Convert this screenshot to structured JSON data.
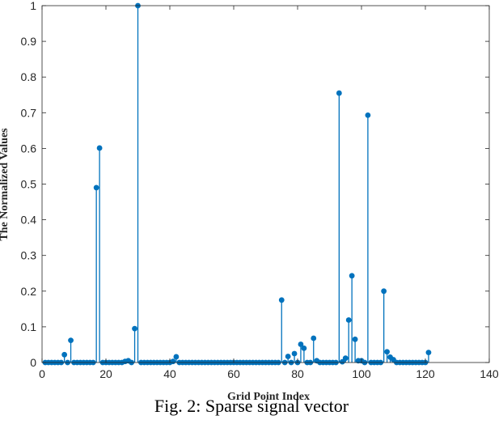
{
  "chart_data": {
    "type": "stem",
    "xlabel": "Grid Point Index",
    "ylabel": "The Normalized Values",
    "xlim": [
      0,
      140
    ],
    "ylim": [
      0,
      1
    ],
    "xticks": [
      0,
      20,
      40,
      60,
      80,
      100,
      120,
      140
    ],
    "yticks": [
      0,
      0.1,
      0.2,
      0.3,
      0.4,
      0.5,
      0.6,
      0.7,
      0.8,
      0.9,
      1
    ],
    "grid": false,
    "color": "#0072BD",
    "x_start": 1,
    "values": [
      0,
      0,
      0,
      0,
      0,
      0,
      0.022,
      0,
      0.062,
      0,
      0,
      0,
      0,
      0,
      0,
      0,
      0.49,
      0.601,
      0,
      0,
      0,
      0,
      0,
      0,
      0,
      0.003,
      0.005,
      0,
      0.095,
      1,
      0,
      0,
      0,
      0,
      0,
      0,
      0,
      0,
      0,
      0,
      0.003,
      0.016,
      0,
      0,
      0,
      0,
      0,
      0,
      0,
      0,
      0,
      0,
      0,
      0,
      0,
      0,
      0,
      0,
      0,
      0,
      0,
      0,
      0,
      0,
      0,
      0,
      0,
      0,
      0,
      0,
      0,
      0,
      0,
      0,
      0.175,
      0,
      0.017,
      0,
      0.025,
      0,
      0.051,
      0.04,
      0,
      0,
      0.068,
      0.005,
      0,
      0,
      0,
      0,
      0,
      0,
      0.755,
      0.002,
      0.012,
      0.119,
      0.243,
      0.065,
      0.005,
      0.005,
      0,
      0.693,
      0,
      0,
      0,
      0,
      0.2,
      0.03,
      0.015,
      0.008,
      0,
      0,
      0,
      0,
      0,
      0,
      0,
      0,
      0,
      0,
      0.028
    ]
  },
  "caption": "Fig. 2: Sparse signal vector"
}
